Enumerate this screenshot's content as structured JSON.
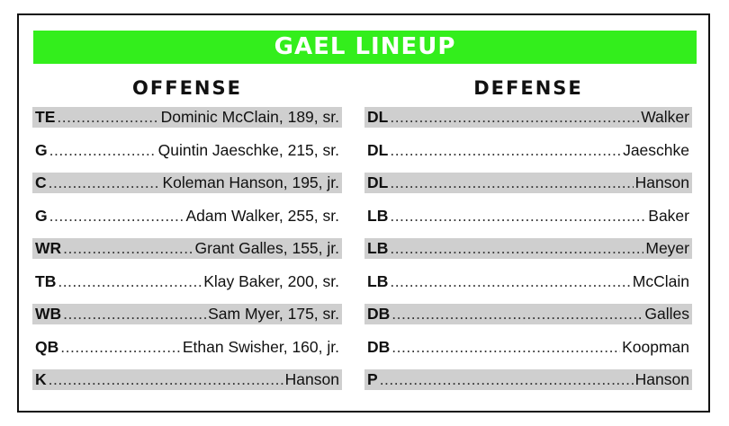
{
  "title": "GAEL LINEUP",
  "offense": {
    "heading": "OFFENSE",
    "rows": [
      {
        "pos": "TE",
        "player": "Dominic McClain, 189, sr."
      },
      {
        "pos": "G",
        "player": "Quintin Jaeschke, 215, sr."
      },
      {
        "pos": "C",
        "player": "Koleman Hanson, 195, jr."
      },
      {
        "pos": "G",
        "player": "Adam Walker, 255, sr."
      },
      {
        "pos": "WR",
        "player": "Grant Galles, 155, jr."
      },
      {
        "pos": "TB",
        "player": "Klay Baker, 200, sr."
      },
      {
        "pos": "WB",
        "player": "Sam Myer, 175, sr."
      },
      {
        "pos": "QB",
        "player": "Ethan Swisher, 160, jr."
      },
      {
        "pos": "K",
        "player": "Hanson"
      }
    ]
  },
  "defense": {
    "heading": "DEFENSE",
    "rows": [
      {
        "pos": "DL",
        "player": "Walker"
      },
      {
        "pos": "DL",
        "player": "Jaeschke"
      },
      {
        "pos": "DL",
        "player": "Hanson"
      },
      {
        "pos": "LB",
        "player": "Baker"
      },
      {
        "pos": "LB",
        "player": "Meyer"
      },
      {
        "pos": "LB",
        "player": "McClain"
      },
      {
        "pos": "DB",
        "player": "Galles"
      },
      {
        "pos": "DB",
        "player": "Koopman"
      },
      {
        "pos": "P",
        "player": "Hanson"
      }
    ]
  },
  "colors": {
    "banner": "#33ee1c",
    "row_shade": "#cfcfcf",
    "border": "#111111"
  }
}
